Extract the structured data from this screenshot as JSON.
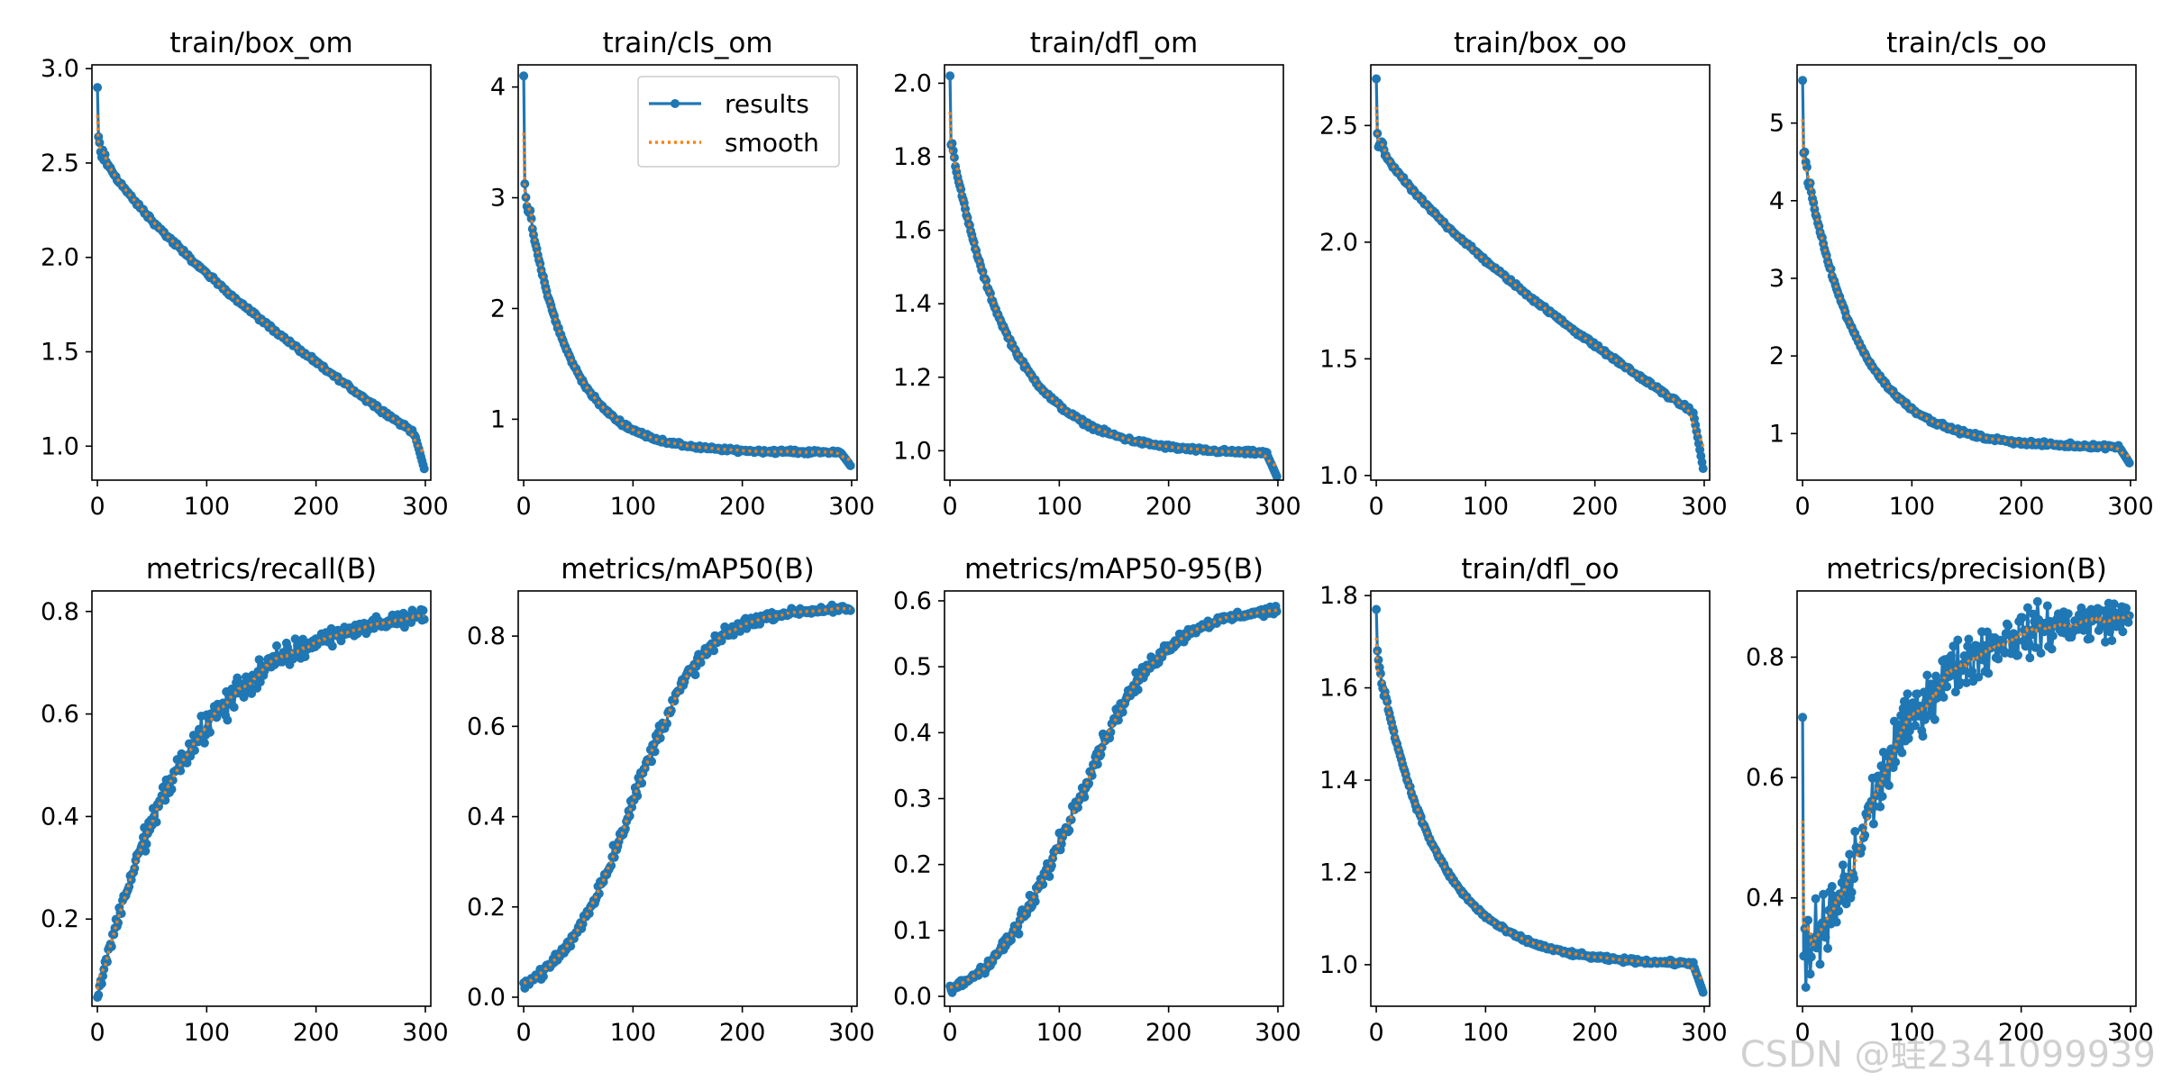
{
  "watermark": "CSDN @蛙2341099939",
  "legend": {
    "results": "results",
    "smooth": "smooth"
  },
  "colors": {
    "results": "#1f77b4",
    "smooth": "#ff7f0e",
    "axis": "#000000"
  },
  "chart_data": [
    {
      "type": "line",
      "title": "train/box_om",
      "xlim": [
        -5,
        305
      ],
      "ylim": [
        0.82,
        3.02
      ],
      "xticks": [
        0,
        100,
        200,
        300
      ],
      "yticks": [
        1.0,
        1.5,
        2.0,
        2.5,
        3.0
      ],
      "yfmt": 1,
      "curve": {
        "kind": "decay",
        "start": 2.9,
        "drop": 2.6,
        "end": 1.07,
        "p": 1.25,
        "tail": 0.88
      },
      "series": [
        {
          "name": "results",
          "values_summary": "decays from 2.9 at epoch 0 to about 0.88 at epoch 299"
        },
        {
          "name": "smooth"
        }
      ]
    },
    {
      "type": "line",
      "title": "train/cls_om",
      "xlim": [
        -5,
        305
      ],
      "ylim": [
        0.45,
        4.2
      ],
      "xticks": [
        0,
        100,
        200,
        300
      ],
      "yticks": [
        1,
        2,
        3,
        4
      ],
      "yfmt": 0,
      "curve": {
        "kind": "decay",
        "start": 4.1,
        "drop": 3.1,
        "end": 0.7,
        "p": 0.45,
        "tail": 0.58
      },
      "series": [
        {
          "name": "results",
          "values_summary": "decays from 4.1 at epoch 0 to about 0.58 at epoch 299"
        },
        {
          "name": "smooth"
        }
      ]
    },
    {
      "type": "line",
      "title": "train/dfl_om",
      "xlim": [
        -5,
        305
      ],
      "ylim": [
        0.92,
        2.05
      ],
      "xticks": [
        0,
        100,
        200,
        300
      ],
      "yticks": [
        1.0,
        1.2,
        1.4,
        1.6,
        1.8,
        2.0
      ],
      "yfmt": 1,
      "curve": {
        "kind": "decay",
        "start": 2.02,
        "drop": 1.84,
        "end": 0.99,
        "p": 0.6,
        "tail": 0.93
      },
      "series": [
        {
          "name": "results",
          "values_summary": "decays from 2.02 at epoch 0 to about 0.93 at epoch 299"
        },
        {
          "name": "smooth"
        }
      ]
    },
    {
      "type": "line",
      "title": "train/box_oo",
      "xlim": [
        -5,
        305
      ],
      "ylim": [
        0.98,
        2.76
      ],
      "xticks": [
        0,
        100,
        200,
        300
      ],
      "yticks": [
        1.0,
        1.5,
        2.0,
        2.5
      ],
      "yfmt": 1,
      "curve": {
        "kind": "decay",
        "start": 2.7,
        "drop": 2.45,
        "end": 1.27,
        "p": 1.3,
        "tail": 1.03
      },
      "series": [
        {
          "name": "results",
          "values_summary": "decays from 2.7 at epoch 0 to about 1.03 at epoch 299"
        },
        {
          "name": "smooth"
        }
      ]
    },
    {
      "type": "line",
      "title": "train/cls_oo",
      "xlim": [
        -5,
        305
      ],
      "ylim": [
        0.4,
        5.75
      ],
      "xticks": [
        0,
        100,
        200,
        300
      ],
      "yticks": [
        1,
        2,
        3,
        4,
        5
      ],
      "yfmt": 0,
      "curve": {
        "kind": "decay",
        "start": 5.55,
        "drop": 4.6,
        "end": 0.82,
        "p": 0.55,
        "tail": 0.62
      },
      "series": [
        {
          "name": "results",
          "values_summary": "decays from 5.55 at epoch 0 to about 0.62 at epoch 299"
        },
        {
          "name": "smooth"
        }
      ]
    },
    {
      "type": "line",
      "title": "metrics/recall(B)",
      "xlim": [
        -5,
        305
      ],
      "ylim": [
        0.03,
        0.84
      ],
      "xticks": [
        0,
        100,
        200,
        300
      ],
      "yticks": [
        0.2,
        0.4,
        0.6,
        0.8
      ],
      "yfmt": 1,
      "curve": {
        "kind": "grow",
        "start": 0.05,
        "end": 0.79,
        "shape": "exp",
        "k": 2.2,
        "noise": 0.028
      },
      "series": [
        {
          "name": "results",
          "values_summary": "rises from about 0.05 to about 0.79"
        },
        {
          "name": "smooth"
        }
      ]
    },
    {
      "type": "line",
      "title": "metrics/mAP50(B)",
      "xlim": [
        -5,
        305
      ],
      "ylim": [
        -0.02,
        0.9
      ],
      "xticks": [
        0,
        100,
        200,
        300
      ],
      "yticks": [
        0.0,
        0.2,
        0.4,
        0.6,
        0.8
      ],
      "yfmt": 1,
      "curve": {
        "kind": "grow",
        "start": 0.03,
        "end": 0.86,
        "shape": "sig",
        "c": 0.33,
        "w": 0.11,
        "noise": 0.018
      },
      "series": [
        {
          "name": "results",
          "values_summary": "rises from about 0.03 to about 0.86"
        },
        {
          "name": "smooth"
        }
      ]
    },
    {
      "type": "line",
      "title": "metrics/mAP50-95(B)",
      "xlim": [
        -5,
        305
      ],
      "ylim": [
        -0.015,
        0.615
      ],
      "xticks": [
        0,
        100,
        200,
        300
      ],
      "yticks": [
        0.0,
        0.1,
        0.2,
        0.3,
        0.4,
        0.5,
        0.6
      ],
      "yfmt": 1,
      "curve": {
        "kind": "grow",
        "start": 0.01,
        "end": 0.585,
        "shape": "sig",
        "c": 0.38,
        "w": 0.13,
        "noise": 0.013
      },
      "series": [
        {
          "name": "results",
          "values_summary": "rises from about 0.01 to about 0.585"
        },
        {
          "name": "smooth"
        }
      ]
    },
    {
      "type": "line",
      "title": "train/dfl_oo",
      "xlim": [
        -5,
        305
      ],
      "ylim": [
        0.91,
        1.81
      ],
      "xticks": [
        0,
        100,
        200,
        300
      ],
      "yticks": [
        1.0,
        1.2,
        1.4,
        1.6,
        1.8
      ],
      "yfmt": 1,
      "curve": {
        "kind": "decay",
        "start": 1.77,
        "drop": 1.67,
        "end": 1.0,
        "p": 0.6,
        "tail": 0.94
      },
      "series": [
        {
          "name": "results",
          "values_summary": "decays from 1.77 at epoch 0 to about 0.94 at epoch 299"
        },
        {
          "name": "smooth"
        }
      ]
    },
    {
      "type": "line",
      "title": "metrics/precision(B)",
      "xlim": [
        -5,
        305
      ],
      "ylim": [
        0.22,
        0.91
      ],
      "xticks": [
        0,
        100,
        200,
        300
      ],
      "yticks": [
        0.4,
        0.6,
        0.8
      ],
      "yfmt": 1,
      "curve": {
        "kind": "prec",
        "start": 0.7,
        "end": 0.865,
        "noise": 0.045
      },
      "series": [
        {
          "name": "results",
          "values_summary": "starts at 0.7, drops to about 0.3, rises to about 0.86"
        },
        {
          "name": "smooth"
        }
      ]
    }
  ]
}
